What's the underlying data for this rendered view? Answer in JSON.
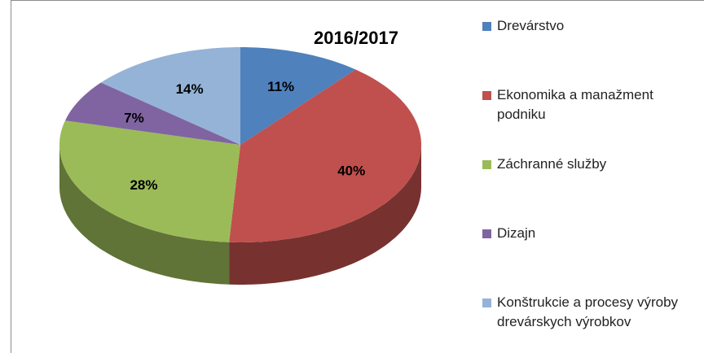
{
  "chart_data": {
    "type": "pie3d",
    "title": "2016/2017",
    "categories": [
      "Drevárstvo",
      "Ekonomika a manažment podniku",
      "Záchranné služby",
      "Dizajn",
      "Konštrukcie a procesy výroby drevárskych výrobkov"
    ],
    "values": [
      11,
      40,
      28,
      7,
      14
    ],
    "value_labels": [
      "11%",
      "40%",
      "28%",
      "7%",
      "14%"
    ],
    "colors": [
      "#4f81bd",
      "#c0504d",
      "#9bbb59",
      "#8064a2",
      "#95b3d7"
    ],
    "legend": "right"
  }
}
